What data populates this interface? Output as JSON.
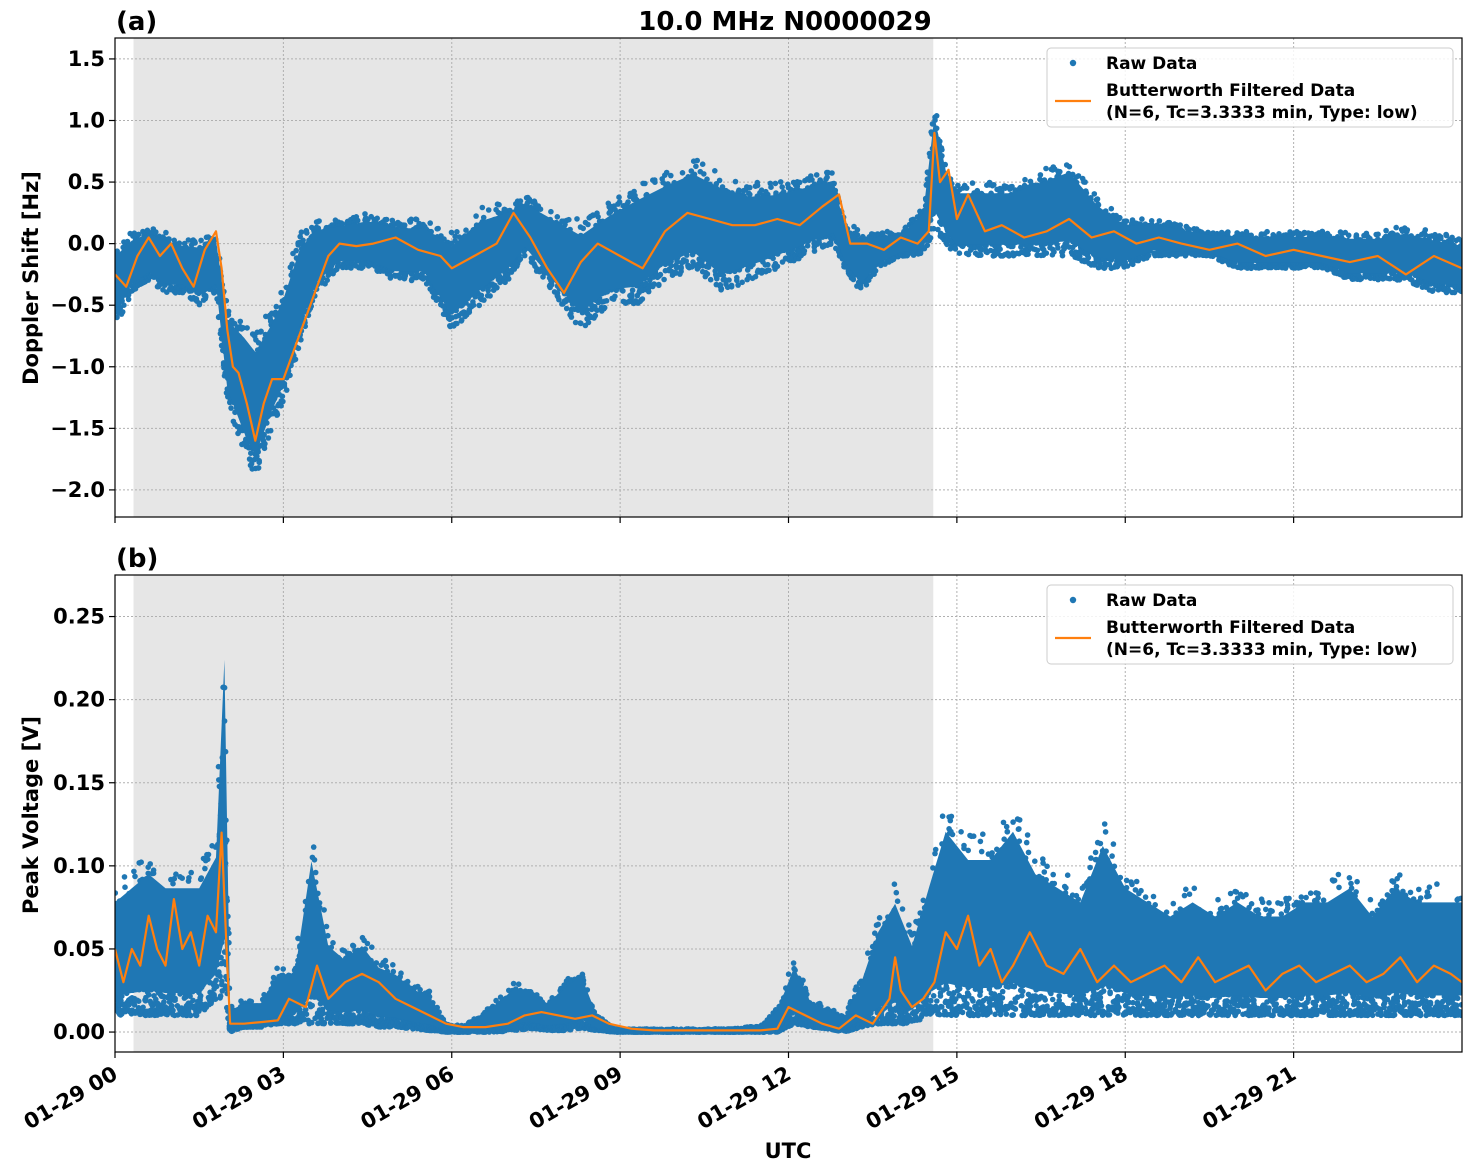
{
  "figure": {
    "title": "10.0 MHz N0000029",
    "xlabel": "UTC"
  },
  "chart_data": [
    {
      "type": "line",
      "panel_label": "(a)",
      "title": "10.0 MHz N0000029",
      "ylabel": "Doppler Shift [Hz]",
      "xlabel": "",
      "x_unit": "hours since 01-29 00 UTC",
      "xlim": [
        0,
        24
      ],
      "ylim": [
        -2.22,
        1.67
      ],
      "yticks": [
        -2.0,
        -1.5,
        -1.0,
        -0.5,
        0.0,
        0.5,
        1.0,
        1.5
      ],
      "ytick_labels": [
        "−2.0",
        "−1.5",
        "−1.0",
        "−0.5",
        "0.0",
        "0.5",
        "1.0",
        "1.5"
      ],
      "grid": true,
      "legend_position": "top-right",
      "shaded_span": [
        0.33,
        14.58
      ],
      "shade_color": "#e6e6e6",
      "series": [
        {
          "name": "Raw Data",
          "color": "#1f77b4",
          "kind": "scatter",
          "x": [
            0.0,
            0.3,
            0.6,
            0.9,
            1.2,
            1.5,
            1.8,
            2.0,
            2.3,
            2.5,
            2.8,
            3.0,
            3.3,
            3.6,
            4.0,
            4.5,
            5.0,
            5.5,
            6.0,
            6.5,
            7.0,
            7.3,
            7.8,
            8.3,
            8.8,
            9.3,
            9.8,
            10.3,
            10.8,
            11.3,
            11.8,
            12.3,
            12.8,
            13.0,
            13.3,
            13.6,
            14.0,
            14.4,
            14.6,
            14.8,
            15.0,
            15.5,
            16.0,
            16.5,
            17.0,
            17.5,
            18.0,
            18.5,
            19.0,
            19.5,
            20.0,
            20.5,
            21.0,
            21.5,
            22.0,
            22.5,
            23.0,
            23.5,
            24.0
          ],
          "y_low": [
            -0.7,
            -0.4,
            -0.3,
            -0.4,
            -0.4,
            -0.5,
            -0.4,
            -1.3,
            -1.7,
            -1.9,
            -1.5,
            -1.3,
            -0.8,
            -0.4,
            -0.2,
            -0.2,
            -0.3,
            -0.3,
            -0.7,
            -0.5,
            -0.3,
            -0.1,
            -0.4,
            -0.7,
            -0.5,
            -0.5,
            -0.3,
            -0.2,
            -0.4,
            -0.3,
            -0.2,
            -0.1,
            0.0,
            -0.2,
            -0.4,
            -0.2,
            -0.1,
            -0.1,
            0.1,
            0.0,
            -0.1,
            -0.1,
            -0.1,
            -0.1,
            -0.1,
            -0.2,
            -0.2,
            -0.1,
            -0.1,
            -0.1,
            -0.2,
            -0.2,
            -0.2,
            -0.2,
            -0.3,
            -0.3,
            -0.3,
            -0.4,
            -0.4
          ],
          "y_high": [
            0.0,
            0.1,
            0.15,
            0.1,
            0.05,
            0.05,
            0.1,
            -0.5,
            -0.6,
            -0.7,
            -0.5,
            -0.3,
            0.1,
            0.2,
            0.2,
            0.25,
            0.2,
            0.2,
            0.1,
            0.3,
            0.35,
            0.4,
            0.3,
            0.2,
            0.35,
            0.5,
            0.6,
            0.7,
            0.6,
            0.5,
            0.5,
            0.55,
            0.6,
            0.2,
            0.1,
            0.1,
            0.1,
            0.3,
            1.2,
            0.7,
            0.5,
            0.5,
            0.5,
            0.6,
            0.7,
            0.4,
            0.2,
            0.2,
            0.15,
            0.1,
            0.1,
            0.1,
            0.1,
            0.1,
            0.1,
            0.1,
            0.15,
            0.1,
            0.05
          ]
        },
        {
          "name": "Butterworth Filtered Data\n(N=6, Tc=3.3333 min, Type: low)",
          "color": "#ff7f0e",
          "kind": "line",
          "x": [
            0.0,
            0.2,
            0.4,
            0.6,
            0.8,
            1.0,
            1.2,
            1.4,
            1.6,
            1.8,
            1.9,
            2.0,
            2.1,
            2.2,
            2.35,
            2.5,
            2.65,
            2.8,
            3.0,
            3.2,
            3.4,
            3.6,
            3.8,
            4.0,
            4.3,
            4.6,
            5.0,
            5.4,
            5.8,
            6.0,
            6.4,
            6.8,
            7.1,
            7.4,
            7.7,
            8.0,
            8.3,
            8.6,
            9.0,
            9.4,
            9.8,
            10.2,
            10.6,
            11.0,
            11.4,
            11.8,
            12.2,
            12.6,
            12.9,
            13.1,
            13.4,
            13.7,
            14.0,
            14.3,
            14.5,
            14.6,
            14.7,
            14.85,
            15.0,
            15.2,
            15.5,
            15.8,
            16.2,
            16.6,
            17.0,
            17.4,
            17.8,
            18.2,
            18.6,
            19.0,
            19.5,
            20.0,
            20.5,
            21.0,
            21.5,
            22.0,
            22.5,
            23.0,
            23.5,
            24.0
          ],
          "y": [
            -0.25,
            -0.35,
            -0.1,
            0.05,
            -0.1,
            0.0,
            -0.2,
            -0.35,
            -0.05,
            0.1,
            -0.2,
            -0.7,
            -1.0,
            -1.05,
            -1.3,
            -1.6,
            -1.3,
            -1.1,
            -1.1,
            -0.85,
            -0.6,
            -0.35,
            -0.1,
            0.0,
            -0.02,
            0.0,
            0.05,
            -0.05,
            -0.1,
            -0.2,
            -0.1,
            0.0,
            0.25,
            0.05,
            -0.2,
            -0.4,
            -0.15,
            0.0,
            -0.1,
            -0.2,
            0.1,
            0.25,
            0.2,
            0.15,
            0.15,
            0.2,
            0.15,
            0.3,
            0.4,
            0.0,
            0.0,
            -0.05,
            0.05,
            0.0,
            0.1,
            0.9,
            0.5,
            0.6,
            0.2,
            0.4,
            0.1,
            0.15,
            0.05,
            0.1,
            0.2,
            0.05,
            0.1,
            0.0,
            0.05,
            0.0,
            -0.05,
            0.0,
            -0.1,
            -0.05,
            -0.1,
            -0.15,
            -0.1,
            -0.25,
            -0.1,
            -0.2
          ]
        }
      ]
    },
    {
      "type": "line",
      "panel_label": "(b)",
      "ylabel": "Peak Voltage [V]",
      "xlabel": "UTC",
      "x_unit": "hours since 01-29 00 UTC",
      "xlim": [
        0,
        24
      ],
      "ylim": [
        -0.012,
        0.275
      ],
      "yticks": [
        0.0,
        0.05,
        0.1,
        0.15,
        0.2,
        0.25
      ],
      "ytick_labels": [
        "0.00",
        "0.05",
        "0.10",
        "0.15",
        "0.20",
        "0.25"
      ],
      "xtick_hours": [
        0,
        3,
        6,
        9,
        12,
        15,
        18,
        21
      ],
      "xtick_labels": [
        "01-29 00",
        "01-29 03",
        "01-29 06",
        "01-29 09",
        "01-29 12",
        "01-29 15",
        "01-29 18",
        "01-29 21"
      ],
      "grid": true,
      "legend_position": "top-right",
      "shaded_span": [
        0.33,
        14.58
      ],
      "shade_color": "#e6e6e6",
      "series": [
        {
          "name": "Raw Data",
          "color": "#1f77b4",
          "kind": "scatter",
          "x": [
            0.0,
            0.3,
            0.6,
            0.9,
            1.2,
            1.5,
            1.8,
            1.95,
            2.05,
            2.3,
            2.6,
            2.9,
            3.2,
            3.5,
            3.8,
            4.1,
            4.4,
            4.7,
            5.0,
            5.3,
            5.6,
            5.9,
            6.2,
            6.5,
            6.8,
            7.1,
            7.4,
            7.7,
            8.0,
            8.3,
            8.6,
            8.9,
            9.2,
            9.6,
            10.0,
            10.5,
            11.0,
            11.5,
            11.8,
            12.1,
            12.4,
            12.7,
            13.0,
            13.3,
            13.6,
            13.9,
            14.2,
            14.5,
            14.8,
            15.2,
            15.6,
            16.0,
            16.4,
            16.8,
            17.2,
            17.6,
            18.0,
            18.4,
            18.8,
            19.2,
            19.6,
            20.0,
            20.4,
            20.8,
            21.2,
            21.6,
            22.0,
            22.4,
            22.8,
            23.2,
            23.6,
            24.0
          ],
          "y_low": [
            0.01,
            0.01,
            0.01,
            0.01,
            0.01,
            0.01,
            0.02,
            0.02,
            0.0,
            0.003,
            0.003,
            0.005,
            0.005,
            0.005,
            0.005,
            0.005,
            0.005,
            0.003,
            0.003,
            0.002,
            0.001,
            0.0,
            0.0,
            0.0,
            0.0,
            0.001,
            0.002,
            0.001,
            0.001,
            0.002,
            0.001,
            0.0,
            0.0,
            0.0,
            0.0,
            0.0,
            0.0,
            0.0,
            0.0,
            0.005,
            0.003,
            0.002,
            0.0,
            0.003,
            0.005,
            0.005,
            0.005,
            0.01,
            0.01,
            0.01,
            0.01,
            0.01,
            0.01,
            0.01,
            0.01,
            0.01,
            0.01,
            0.01,
            0.01,
            0.01,
            0.01,
            0.01,
            0.01,
            0.01,
            0.01,
            0.01,
            0.01,
            0.01,
            0.01,
            0.01,
            0.01,
            0.01
          ],
          "y_high": [
            0.09,
            0.1,
            0.11,
            0.1,
            0.1,
            0.1,
            0.12,
            0.26,
            0.015,
            0.02,
            0.02,
            0.04,
            0.04,
            0.12,
            0.06,
            0.05,
            0.06,
            0.045,
            0.04,
            0.03,
            0.025,
            0.005,
            0.004,
            0.01,
            0.02,
            0.03,
            0.03,
            0.02,
            0.03,
            0.04,
            0.01,
            0.002,
            0.002,
            0.002,
            0.002,
            0.002,
            0.002,
            0.004,
            0.015,
            0.045,
            0.02,
            0.015,
            0.01,
            0.035,
            0.07,
            0.09,
            0.06,
            0.1,
            0.14,
            0.12,
            0.12,
            0.14,
            0.11,
            0.1,
            0.09,
            0.13,
            0.1,
            0.09,
            0.08,
            0.09,
            0.08,
            0.09,
            0.08,
            0.08,
            0.09,
            0.09,
            0.1,
            0.08,
            0.1,
            0.09,
            0.09,
            0.09
          ]
        },
        {
          "name": "Butterworth Filtered Data\n(N=6, Tc=3.3333 min, Type: low)",
          "color": "#ff7f0e",
          "kind": "line",
          "x": [
            0.0,
            0.15,
            0.3,
            0.45,
            0.6,
            0.75,
            0.9,
            1.05,
            1.2,
            1.35,
            1.5,
            1.65,
            1.8,
            1.9,
            1.95,
            2.0,
            2.05,
            2.3,
            2.6,
            2.9,
            3.1,
            3.4,
            3.6,
            3.8,
            4.1,
            4.4,
            4.7,
            5.0,
            5.3,
            5.6,
            5.9,
            6.2,
            6.6,
            7.0,
            7.3,
            7.6,
            7.9,
            8.2,
            8.5,
            8.8,
            9.2,
            9.6,
            10.0,
            10.5,
            11.0,
            11.5,
            11.8,
            12.0,
            12.3,
            12.6,
            12.9,
            13.2,
            13.5,
            13.8,
            13.9,
            14.0,
            14.2,
            14.4,
            14.6,
            14.8,
            15.0,
            15.2,
            15.4,
            15.6,
            15.8,
            16.0,
            16.3,
            16.6,
            16.9,
            17.2,
            17.5,
            17.8,
            18.1,
            18.4,
            18.7,
            19.0,
            19.3,
            19.6,
            19.9,
            20.2,
            20.5,
            20.8,
            21.1,
            21.4,
            21.7,
            22.0,
            22.3,
            22.6,
            22.9,
            23.2,
            23.5,
            23.8,
            24.0
          ],
          "y": [
            0.05,
            0.03,
            0.05,
            0.04,
            0.07,
            0.05,
            0.04,
            0.08,
            0.05,
            0.06,
            0.04,
            0.07,
            0.06,
            0.12,
            0.08,
            0.04,
            0.005,
            0.005,
            0.006,
            0.007,
            0.02,
            0.015,
            0.04,
            0.02,
            0.03,
            0.035,
            0.03,
            0.02,
            0.015,
            0.01,
            0.005,
            0.003,
            0.003,
            0.005,
            0.01,
            0.012,
            0.01,
            0.008,
            0.01,
            0.005,
            0.002,
            0.001,
            0.001,
            0.001,
            0.001,
            0.001,
            0.002,
            0.015,
            0.01,
            0.005,
            0.002,
            0.01,
            0.005,
            0.02,
            0.045,
            0.025,
            0.015,
            0.02,
            0.03,
            0.06,
            0.05,
            0.07,
            0.04,
            0.05,
            0.03,
            0.04,
            0.06,
            0.04,
            0.035,
            0.05,
            0.03,
            0.04,
            0.03,
            0.035,
            0.04,
            0.03,
            0.045,
            0.03,
            0.035,
            0.04,
            0.025,
            0.035,
            0.04,
            0.03,
            0.035,
            0.04,
            0.03,
            0.035,
            0.045,
            0.03,
            0.04,
            0.035,
            0.03
          ]
        }
      ]
    }
  ]
}
